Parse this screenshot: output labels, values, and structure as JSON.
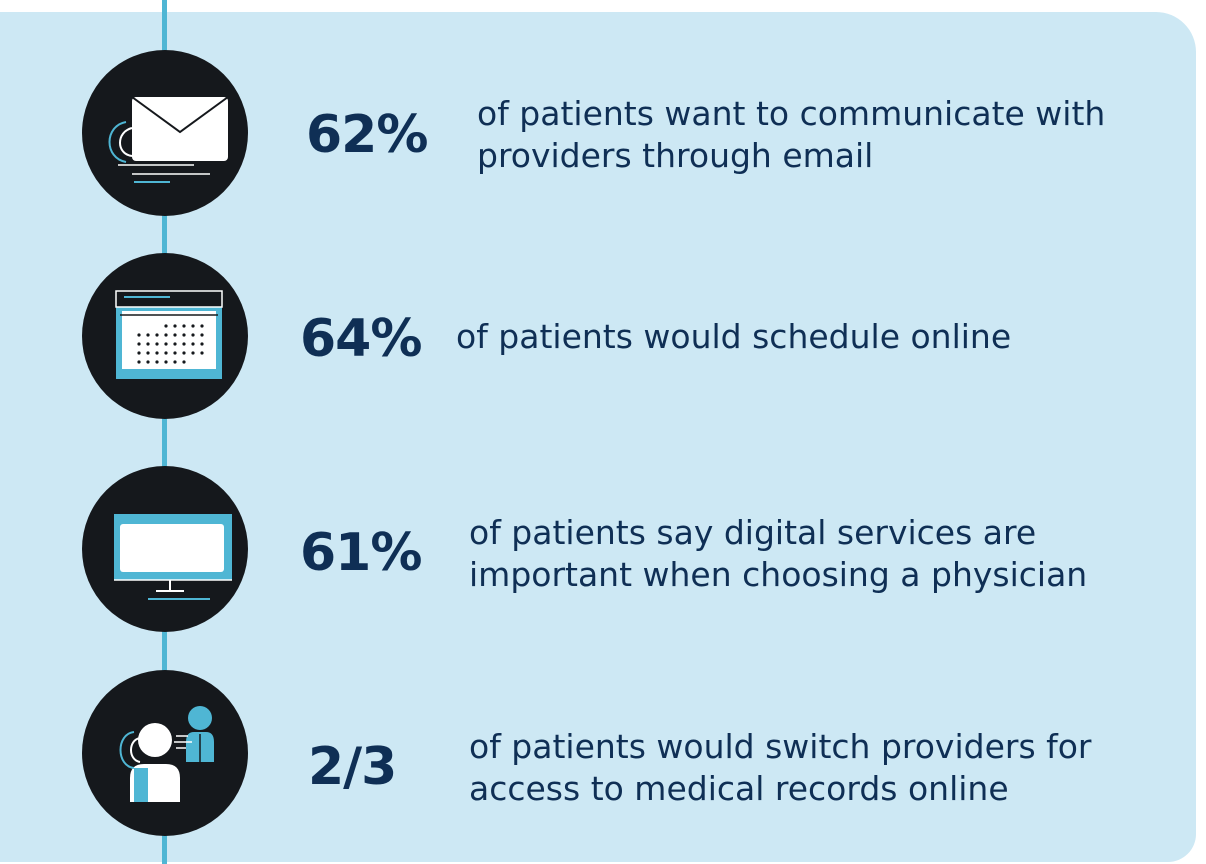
{
  "rows": [
    {
      "icon": "email-icon",
      "stat": "62%",
      "line1": "of patients want to communicate with",
      "line2": "providers through email"
    },
    {
      "icon": "calendar-icon",
      "stat": "64%",
      "line1": "of patients would schedule online",
      "line2": ""
    },
    {
      "icon": "monitor-icon",
      "stat": "61%",
      "line1": "of patients say digital services are",
      "line2": "important when choosing a physician"
    },
    {
      "icon": "people-icon",
      "stat": "2/3",
      "line1": "of patients would switch providers for",
      "line2": "access to medical records online"
    }
  ],
  "colors": {
    "panel": "#cde8f4",
    "accent": "#4fb6d4",
    "circle": "#15181c",
    "text": "#0f2f55"
  }
}
